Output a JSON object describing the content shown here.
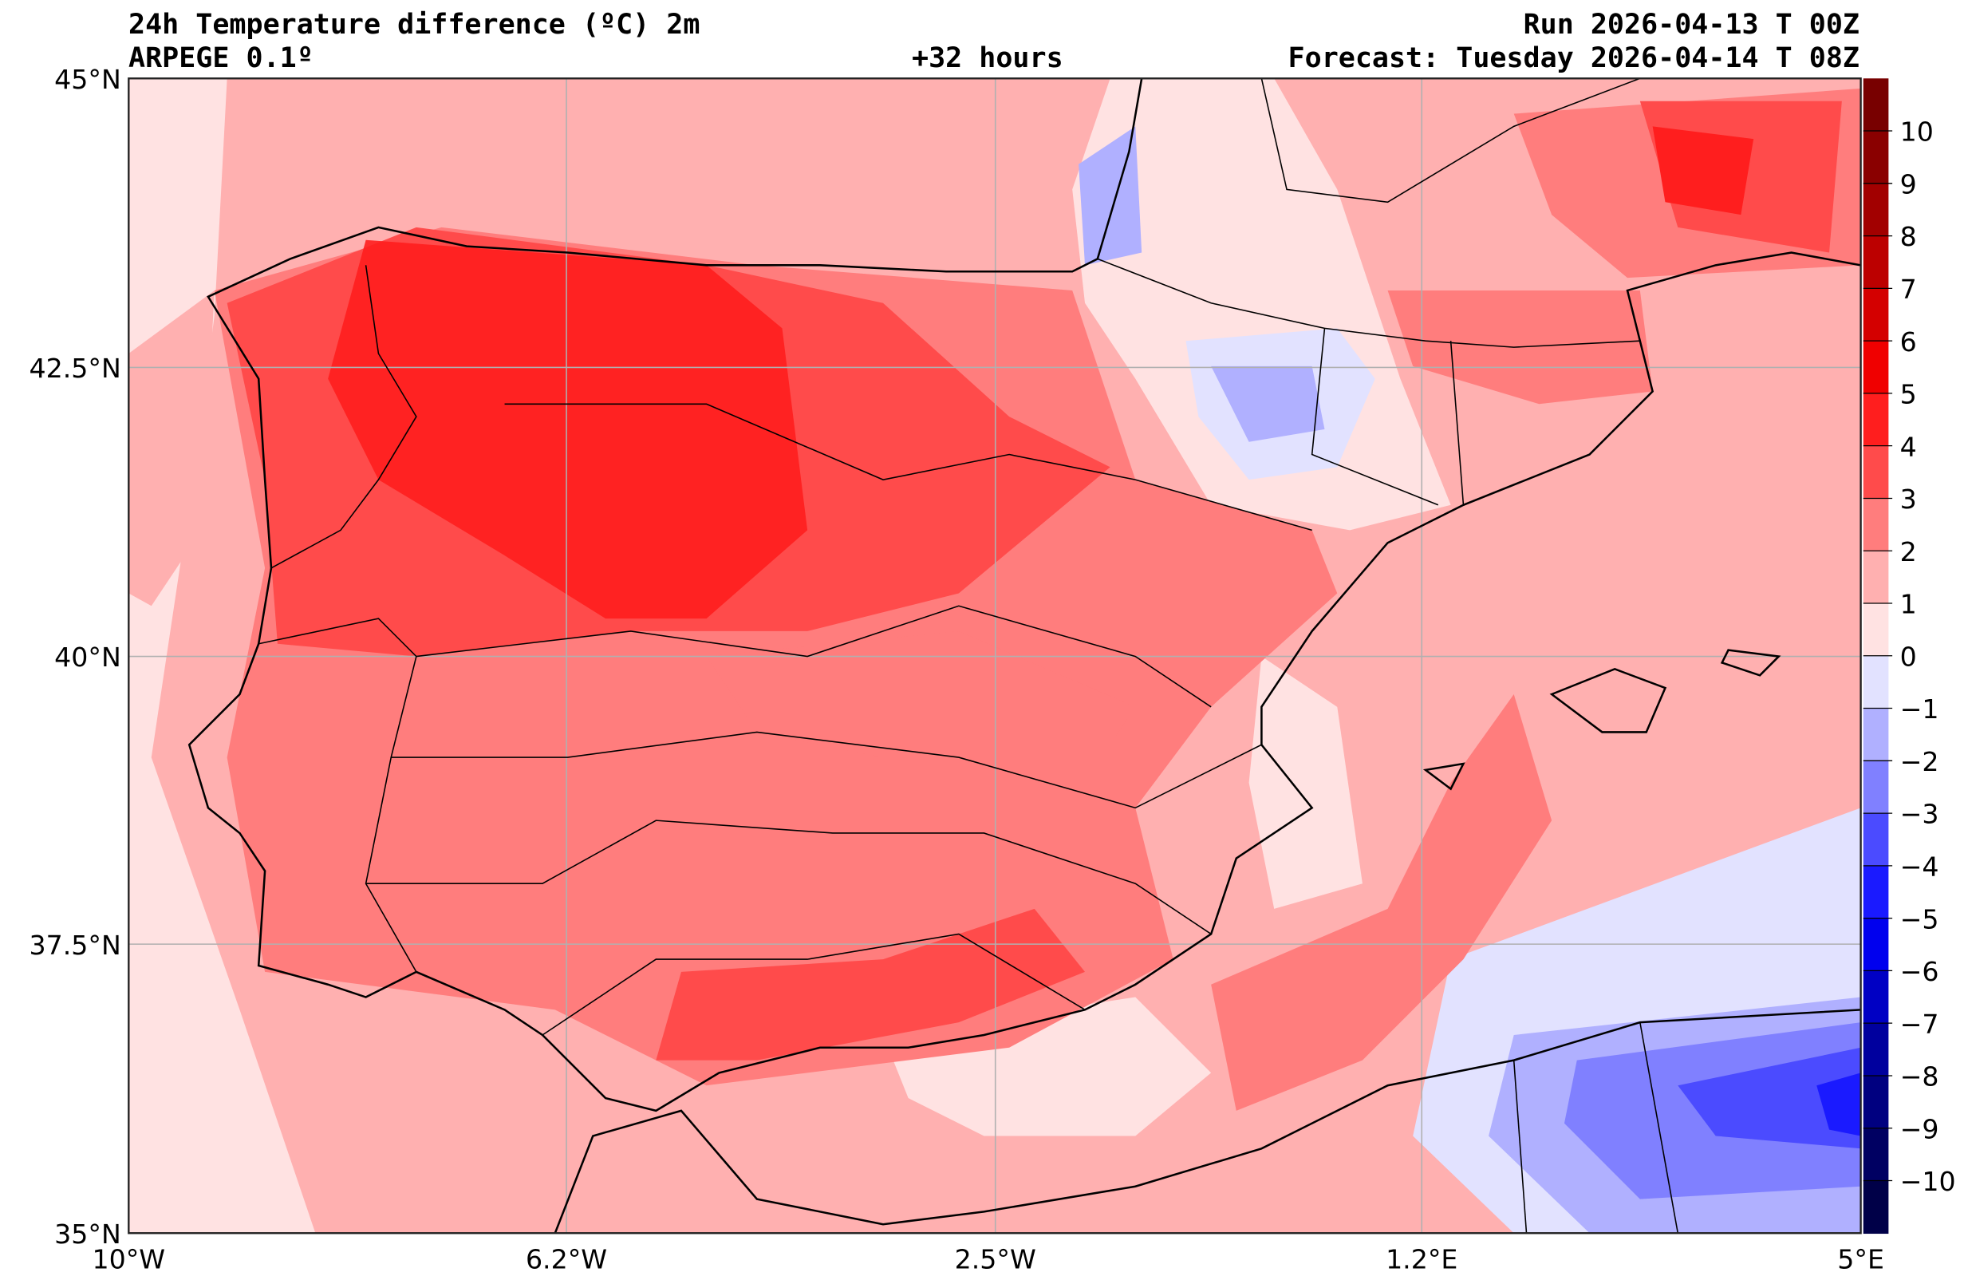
{
  "header": {
    "title": "24h Temperature difference (ºC) 2m",
    "model": "ARPEGE 0.1º",
    "lead": "+32 hours",
    "run": "Run 2026-04-13 T 00Z",
    "forecast": "Forecast: Tuesday 2026-04-14 T 08Z"
  },
  "chart_data": {
    "type": "heatmap",
    "title": "24h Temperature difference (ºC) 2m",
    "xlabel": "",
    "ylabel": "",
    "x_ticks": [
      "10°W",
      "6.2°W",
      "2.5°W",
      "1.2°E",
      "5°E"
    ],
    "y_ticks": [
      "45°N",
      "42.5°N",
      "40°N",
      "37.5°N",
      "35°N"
    ],
    "xlim": [
      -10,
      5
    ],
    "ylim": [
      35,
      45
    ],
    "grid": true,
    "colorbar": {
      "ticks": [
        "10",
        "9",
        "8",
        "7",
        "6",
        "5",
        "4",
        "3",
        "2",
        "1",
        "0",
        "−1",
        "−2",
        "−3",
        "−4",
        "−5",
        "−6",
        "−7",
        "−8",
        "−9",
        "−10"
      ],
      "range": [
        -11,
        11
      ],
      "colors": [
        "#780000",
        "#8a0000",
        "#a20000",
        "#bc0000",
        "#d40000",
        "#f00000",
        "#ff1e1e",
        "#ff4b4b",
        "#ff7d7d",
        "#ffb0b0",
        "#ffe2e2",
        "#e2e2ff",
        "#b0b0ff",
        "#8080ff",
        "#4b4bff",
        "#1a1aff",
        "#0000ee",
        "#0000c4",
        "#00009e",
        "#000080",
        "#000062",
        "#000048"
      ]
    },
    "summary": "Mostly warming of +1 to +4 ºC over Iberia (strongest +4–5 ºC in NW/central Spain and NE Catalonia), cooling −1 to −4 ºC over northern Algeria/Mediterranean SE corner and parts of Ebro valley"
  }
}
